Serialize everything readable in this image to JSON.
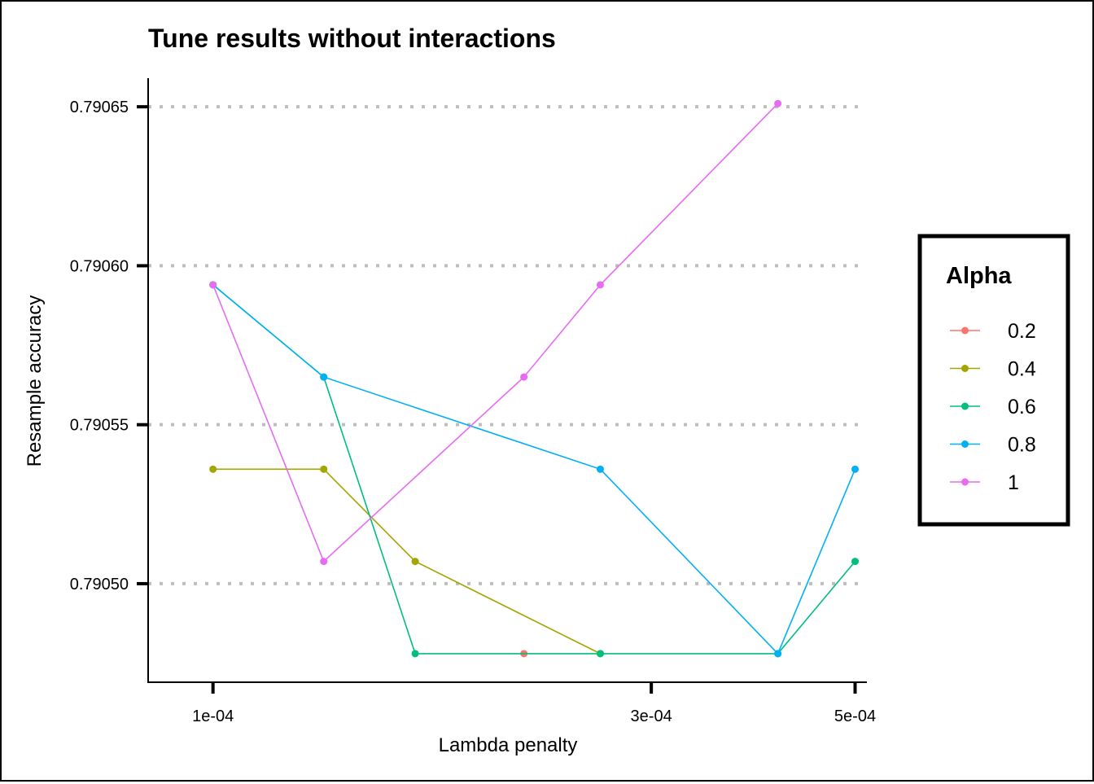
{
  "chart_data": {
    "type": "line",
    "title": "Tune results without interactions",
    "xlabel": "Lambda penalty",
    "ylabel": "Resample accuracy",
    "x_ticks": [
      {
        "value": 0.0001,
        "label": "1e-04"
      },
      {
        "value": 0.0003,
        "label": "3e-04"
      },
      {
        "value": 0.0005,
        "label": "5e-04"
      }
    ],
    "y_ticks": [
      {
        "value": 0.7905,
        "label": "0.79050"
      },
      {
        "value": 0.79055,
        "label": "0.79055"
      },
      {
        "value": 0.7906,
        "label": "0.79060"
      },
      {
        "value": 0.79065,
        "label": "0.79065"
      }
    ],
    "xlim": [
      8.5e-05,
      0.000515
    ],
    "ylim": [
      0.790469,
      0.790659
    ],
    "x_scale": "log10",
    "grid": "horizontal dotted major lines",
    "legend": {
      "title": "Alpha",
      "position": "right"
    },
    "series": [
      {
        "name": "0.2",
        "color": "#F8766D",
        "points": [
          {
            "x": 0.000218,
            "y": 0.790478
          }
        ]
      },
      {
        "name": "0.4",
        "color": "#A3A500",
        "points": [
          {
            "x": 0.0001,
            "y": 0.790536
          },
          {
            "x": 0.000132,
            "y": 0.790536
          },
          {
            "x": 0.000166,
            "y": 0.790507
          },
          {
            "x": 0.000264,
            "y": 0.790478
          }
        ]
      },
      {
        "name": "0.6",
        "color": "#00BF7D",
        "points": [
          {
            "x": 0.0001,
            "y": 0.790594
          },
          {
            "x": 0.000132,
            "y": 0.790565
          },
          {
            "x": 0.000166,
            "y": 0.790478
          },
          {
            "x": 0.000264,
            "y": 0.790478
          },
          {
            "x": 0.000412,
            "y": 0.790478
          },
          {
            "x": 0.0005,
            "y": 0.790507
          }
        ]
      },
      {
        "name": "0.8",
        "color": "#00B0F6",
        "points": [
          {
            "x": 0.0001,
            "y": 0.790594
          },
          {
            "x": 0.000132,
            "y": 0.790565
          },
          {
            "x": 0.000264,
            "y": 0.790536
          },
          {
            "x": 0.000412,
            "y": 0.790478
          },
          {
            "x": 0.0005,
            "y": 0.790536
          }
        ]
      },
      {
        "name": "1",
        "color": "#E76BF3",
        "points": [
          {
            "x": 0.0001,
            "y": 0.790594
          },
          {
            "x": 0.000132,
            "y": 0.790507
          },
          {
            "x": 0.000218,
            "y": 0.790565
          },
          {
            "x": 0.000264,
            "y": 0.790594
          },
          {
            "x": 0.000412,
            "y": 0.790651
          }
        ]
      }
    ]
  }
}
